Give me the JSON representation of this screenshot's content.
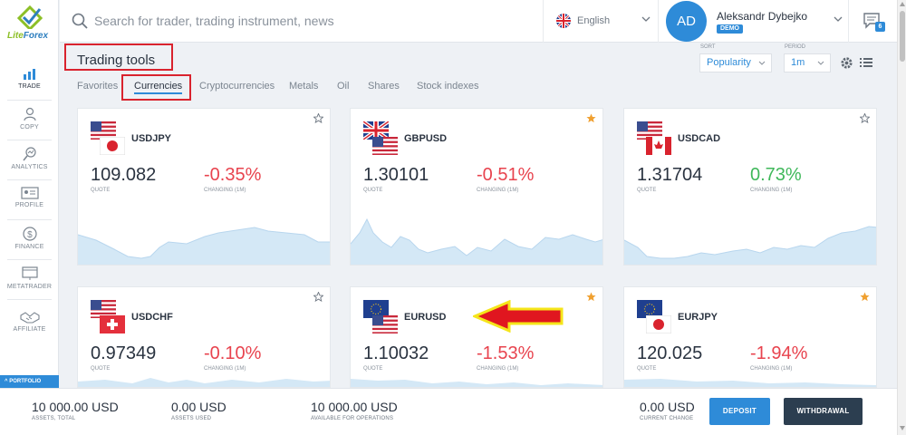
{
  "brand": {
    "name_a": "Lite",
    "name_b": "Forex"
  },
  "sidebar": {
    "items": [
      {
        "label": "TRADE",
        "icon": "chart-bars-icon"
      },
      {
        "label": "COPY",
        "icon": "person-copy-icon"
      },
      {
        "label": "ANALYTICS",
        "icon": "magnifier-chart-icon"
      },
      {
        "label": "PROFILE",
        "icon": "id-card-icon"
      },
      {
        "label": "FINANCE",
        "icon": "dollar-coin-icon"
      },
      {
        "label": "METATRADER",
        "icon": "monitor-icon"
      },
      {
        "label": "AFFILIATE",
        "icon": "handshake-icon"
      }
    ],
    "portfolio_label": "PORTFOLIO"
  },
  "header": {
    "search_placeholder": "Search for trader, trading instrument, news",
    "language": "English",
    "user": {
      "initials": "AD",
      "name": "Aleksandr Dybejko",
      "badge": "DEMO"
    },
    "messages_count": "6"
  },
  "page": {
    "title": "Trading tools",
    "tabs": [
      "Favorites",
      "Currencies",
      "Cryptocurrencies",
      "Metals",
      "Oil",
      "Shares",
      "Stock indexes"
    ],
    "active_tab": "Currencies",
    "sort": {
      "label": "SORT",
      "value": "Popularity"
    },
    "period": {
      "label": "PERIOD",
      "value": "1m"
    }
  },
  "cards": [
    {
      "pair": "USDJPY",
      "quote": "109.082",
      "change": "-0.35%",
      "quote_label": "QUOTE",
      "change_label": "CHANGING (1M)",
      "favorite": false,
      "direction": "down"
    },
    {
      "pair": "GBPUSD",
      "quote": "1.30101",
      "change": "-0.51%",
      "quote_label": "QUOTE",
      "change_label": "CHANGING (1M)",
      "favorite": true,
      "direction": "down"
    },
    {
      "pair": "USDCAD",
      "quote": "1.31704",
      "change": "0.73%",
      "quote_label": "QUOTE",
      "change_label": "CHANGING (1M)",
      "favorite": false,
      "direction": "up"
    },
    {
      "pair": "USDCHF",
      "quote": "0.97349",
      "change": "-0.10%",
      "quote_label": "QUOTE",
      "change_label": "CHANGING (1M)",
      "favorite": false,
      "direction": "down"
    },
    {
      "pair": "EURUSD",
      "quote": "1.10032",
      "change": "-1.53%",
      "quote_label": "QUOTE",
      "change_label": "CHANGING (1M)",
      "favorite": true,
      "direction": "down"
    },
    {
      "pair": "EURJPY",
      "quote": "120.025",
      "change": "-1.94%",
      "quote_label": "QUOTE",
      "change_label": "CHANGING (1M)",
      "favorite": true,
      "direction": "down"
    }
  ],
  "bottom": {
    "stats": [
      {
        "value": "10 000.00 USD",
        "label": "ASSETS, TOTAL"
      },
      {
        "value": "0.00 USD",
        "label": "ASSETS USED"
      },
      {
        "value": "10 000.00 USD",
        "label": "AVAILABLE FOR OPERATIONS"
      },
      {
        "value": "0.00 USD",
        "label": "CURRENT CHANGE"
      }
    ],
    "deposit_label": "DEPOSIT",
    "withdrawal_label": "WITHDRAWAL"
  },
  "colors": {
    "accent": "#2e8bd8",
    "negative": "#e8434e",
    "positive": "#3fb85a",
    "highlight": "#d9232e",
    "star": "#f0a030"
  }
}
